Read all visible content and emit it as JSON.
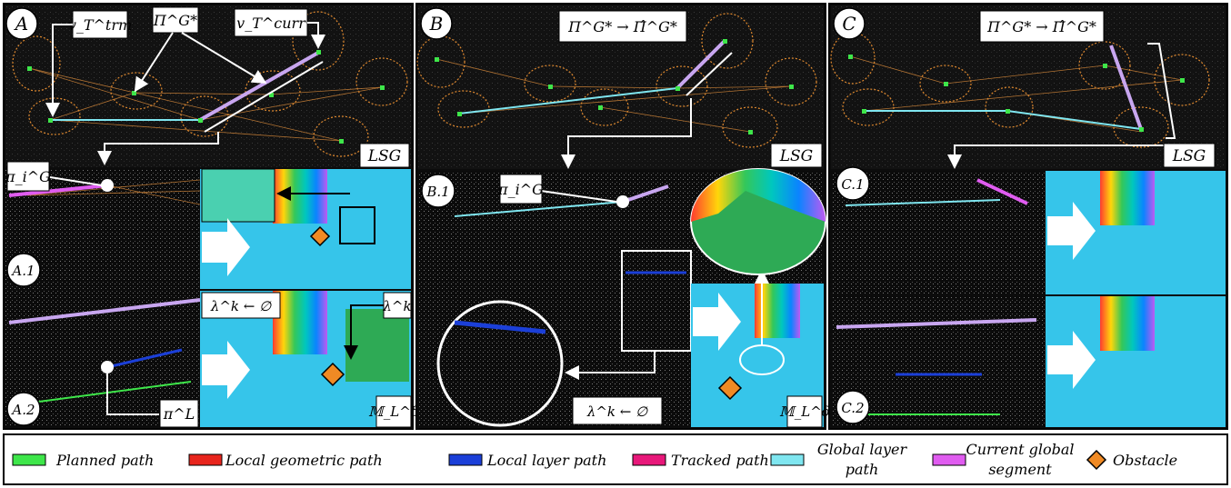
{
  "panels": [
    {
      "letter": "A",
      "callouts": [
        "v_T^trm",
        "Π^G*",
        "v_T^curr"
      ],
      "lsg": "LSG",
      "sub": [
        {
          "label": "A.1",
          "math": "π_i^G"
        },
        {
          "label": "A.2",
          "lambda_empty": "λ^k ← ∅",
          "lambda": "λ^k",
          "pi_l": "π^L",
          "map": "𝕄_L^δ"
        }
      ]
    },
    {
      "letter": "B",
      "callouts": [
        "Π^G* → Π̂^G*"
      ],
      "lsg": "LSG",
      "sub": [
        {
          "label": "B.1",
          "math": "π_i^G",
          "lambda_empty": "λ^k ← ∅",
          "map": "𝕄_L^δ"
        }
      ]
    },
    {
      "letter": "C",
      "callouts": [
        "Π^G* → Π̂^G*"
      ],
      "lsg": "LSG",
      "sub": [
        {
          "label": "C.1"
        },
        {
          "label": "C.2"
        }
      ]
    }
  ],
  "legend": [
    {
      "label": "Planned path",
      "color": "#3ee64a",
      "shape": "rect"
    },
    {
      "label": "Local geometric path",
      "color": "#e8251d",
      "shape": "rect"
    },
    {
      "label": "Local layer path",
      "color": "#1b3fd8",
      "shape": "rect"
    },
    {
      "label": "Tracked path",
      "color": "#e8187a",
      "shape": "rect"
    },
    {
      "label": "Global layer path",
      "color": "#7fe6f0",
      "shape": "rect"
    },
    {
      "label": "Current global segment",
      "color": "#e05cf0",
      "shape": "rect"
    },
    {
      "label": "Obstacle",
      "color": "#f08a24",
      "shape": "diamond"
    }
  ],
  "legend_multiline": {
    "global_1": "Global layer",
    "global_2": "path",
    "current_1": "Current global",
    "current_2": "segment"
  }
}
